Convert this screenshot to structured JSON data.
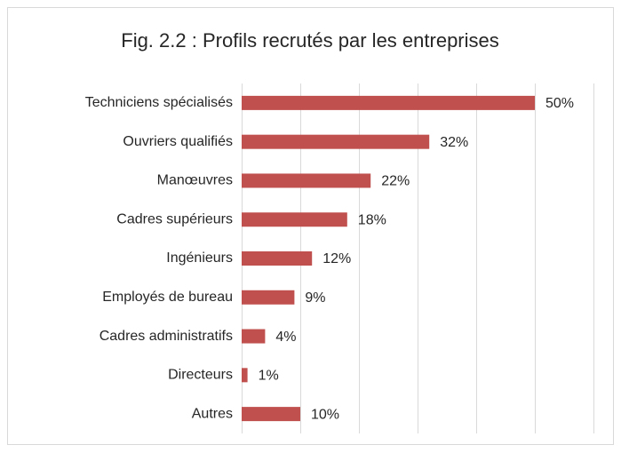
{
  "chart_data": {
    "type": "bar",
    "orientation": "horizontal",
    "title": "Fig. 2.2 : Profils recrutés par les entreprises",
    "categories": [
      "Techniciens spécialisés",
      "Ouvriers qualifiés",
      "Manœuvres",
      "Cadres supérieurs",
      "Ingénieurs",
      "Employés de bureau",
      "Cadres administratifs",
      "Directeurs",
      "Autres"
    ],
    "values": [
      50,
      32,
      22,
      18,
      12,
      9,
      4,
      1,
      10
    ],
    "value_labels": [
      "50%",
      "32%",
      "22%",
      "18%",
      "12%",
      "9%",
      "4%",
      "1%",
      "10%"
    ],
    "color": "#c0504d",
    "xlim": [
      0,
      60
    ],
    "xticks": [
      0,
      10,
      20,
      30,
      40,
      50,
      60
    ],
    "grid": true
  }
}
